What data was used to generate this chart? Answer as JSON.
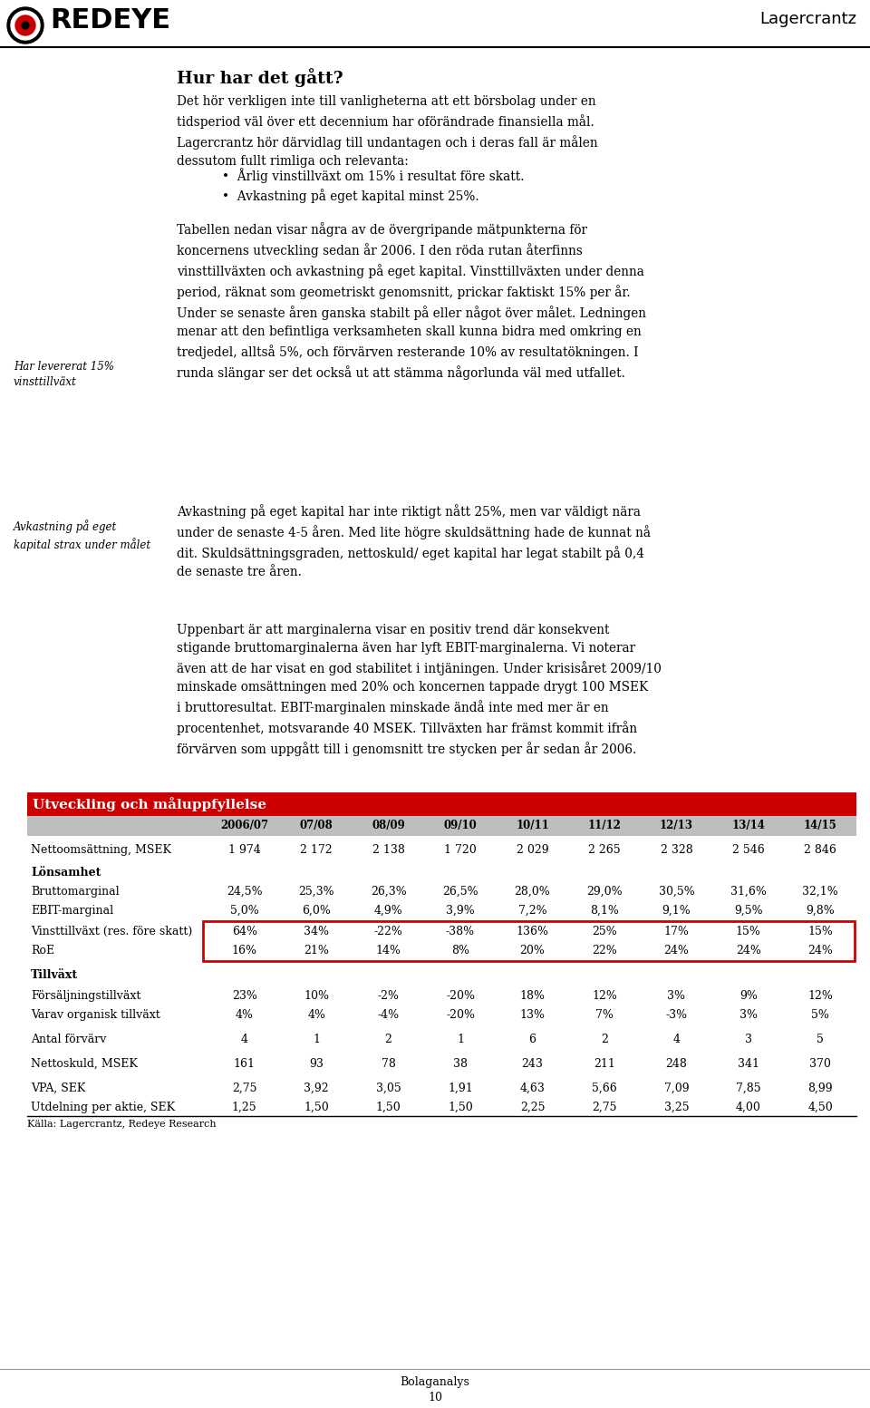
{
  "page_title": "Lagercrantz",
  "logo_text": "REDEYE",
  "section_title": "Hur har det gått?",
  "table_title": "Utveckling och måluppfyllelse",
  "table_header_bg": "#CC0000",
  "table_subheader_bg": "#BEBEBE",
  "table_years": [
    "2006/07",
    "07/08",
    "08/09",
    "09/10",
    "10/11",
    "11/12",
    "12/13",
    "13/14",
    "14/15"
  ],
  "table_rows": [
    {
      "label": "Nettoomsättning, MSEK",
      "bold": false,
      "values": [
        "1 974",
        "2 172",
        "2 138",
        "1 720",
        "2 029",
        "2 265",
        "2 328",
        "2 546",
        "2 846"
      ],
      "red_box": false,
      "space_before": 6
    },
    {
      "label": "Lönsamhet",
      "bold": true,
      "values": [
        "",
        "",
        "",
        "",
        "",
        "",
        "",
        "",
        ""
      ],
      "red_box": false,
      "space_before": 6
    },
    {
      "label": "Bruttomarginal",
      "bold": false,
      "values": [
        "24,5%",
        "25,3%",
        "26,3%",
        "26,5%",
        "28,0%",
        "29,0%",
        "30,5%",
        "31,6%",
        "32,1%"
      ],
      "red_box": false,
      "space_before": 2
    },
    {
      "label": "EBIT-marginal",
      "bold": false,
      "values": [
        "5,0%",
        "6,0%",
        "4,9%",
        "3,9%",
        "7,2%",
        "8,1%",
        "9,1%",
        "9,5%",
        "9,8%"
      ],
      "red_box": false,
      "space_before": 2
    },
    {
      "label": "Vinsttillväxt (res. före skatt)",
      "bold": false,
      "values": [
        "64%",
        "34%",
        "-22%",
        "-38%",
        "136%",
        "25%",
        "17%",
        "15%",
        "15%"
      ],
      "red_box": true,
      "space_before": 4
    },
    {
      "label": "RoE",
      "bold": false,
      "values": [
        "16%",
        "21%",
        "14%",
        "8%",
        "20%",
        "22%",
        "24%",
        "24%",
        "24%"
      ],
      "red_box": true,
      "space_before": 2
    },
    {
      "label": "Tillväxt",
      "bold": true,
      "values": [
        "",
        "",
        "",
        "",
        "",
        "",
        "",
        "",
        ""
      ],
      "red_box": false,
      "space_before": 8
    },
    {
      "label": "Försäljningstillväxt",
      "bold": false,
      "values": [
        "23%",
        "10%",
        "-2%",
        "-20%",
        "18%",
        "12%",
        "3%",
        "9%",
        "12%"
      ],
      "red_box": false,
      "space_before": 4
    },
    {
      "label": "Varav organisk tillväxt",
      "bold": false,
      "values": [
        "4%",
        "4%",
        "-4%",
        "-20%",
        "13%",
        "7%",
        "-3%",
        "3%",
        "5%"
      ],
      "red_box": false,
      "space_before": 2
    },
    {
      "label": "Antal förvärv",
      "bold": false,
      "values": [
        "4",
        "1",
        "2",
        "1",
        "6",
        "2",
        "4",
        "3",
        "5"
      ],
      "red_box": false,
      "space_before": 8
    },
    {
      "label": "Nettoskuld, MSEK",
      "bold": false,
      "values": [
        "161",
        "93",
        "78",
        "38",
        "243",
        "211",
        "248",
        "341",
        "370"
      ],
      "red_box": false,
      "space_before": 8
    },
    {
      "label": "VPA, SEK",
      "bold": false,
      "values": [
        "2,75",
        "3,92",
        "3,05",
        "1,91",
        "4,63",
        "5,66",
        "7,09",
        "7,85",
        "8,99"
      ],
      "red_box": false,
      "space_before": 8
    },
    {
      "label": "Utdelning per aktie, SEK",
      "bold": false,
      "values": [
        "1,25",
        "1,50",
        "1,50",
        "1,50",
        "2,25",
        "2,75",
        "3,25",
        "4,00",
        "4,50"
      ],
      "red_box": false,
      "space_before": 2
    }
  ],
  "table_source": "Källa: Lagercrantz, Redeye Research",
  "bg_color": "#FFFFFF",
  "text_color": "#000000",
  "red_color": "#CC0000",
  "fig_width": 9.6,
  "fig_height": 15.53,
  "dpi": 100
}
